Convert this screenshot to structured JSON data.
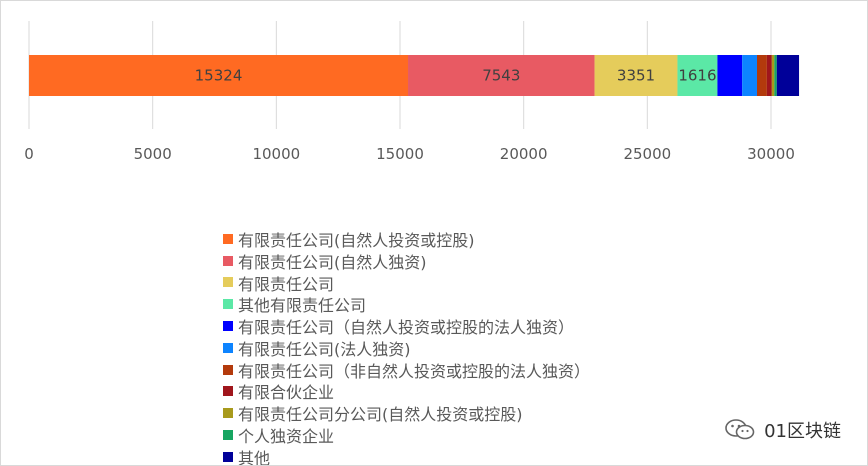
{
  "chart_data": {
    "type": "bar",
    "orientation": "horizontal",
    "stacked": true,
    "categories": [
      ""
    ],
    "series": [
      {
        "name": "有限责任公司(自然人投资或控股)",
        "values": [
          15324
        ],
        "color": "#FF6A22",
        "data_label": "15324"
      },
      {
        "name": "有限责任公司(自然人独资)",
        "values": [
          7543
        ],
        "color": "#E85A63",
        "data_label": "7543"
      },
      {
        "name": "有限责任公司",
        "values": [
          3351
        ],
        "color": "#E5CC5B",
        "data_label": "3351"
      },
      {
        "name": "其他有限责任公司",
        "values": [
          1616
        ],
        "color": "#5BE8A6",
        "data_label": "1616"
      },
      {
        "name": "有限责任公司（自然人投资或控股的法人独资）",
        "values": [
          1000
        ],
        "color": "#0000FF",
        "data_label": ""
      },
      {
        "name": "有限责任公司(法人独资)",
        "values": [
          600
        ],
        "color": "#0D84FF",
        "data_label": ""
      },
      {
        "name": "有限责任公司（非自然人投资或控股的法人独资）",
        "values": [
          400
        ],
        "color": "#B33A0C",
        "data_label": ""
      },
      {
        "name": "有限合伙企业",
        "values": [
          200
        ],
        "color": "#A0161C",
        "data_label": ""
      },
      {
        "name": "有限责任公司分公司(自然人投资或控股)",
        "values": [
          100
        ],
        "color": "#A89A1C",
        "data_label": ""
      },
      {
        "name": "个人独资企业",
        "values": [
          100
        ],
        "color": "#17A561",
        "data_label": ""
      },
      {
        "name": "其他",
        "values": [
          900
        ],
        "color": "#000099",
        "data_label": ""
      }
    ],
    "x_ticks": [
      "0",
      "5000",
      "10000",
      "15000",
      "20000",
      "25000",
      "30000"
    ],
    "xlim": [
      0,
      30000
    ],
    "grid": "vertical",
    "legend_position": "bottom",
    "title": "",
    "xlabel": "",
    "ylabel": ""
  },
  "watermark": {
    "text": "01区块链",
    "icon": "wechat-icon"
  }
}
